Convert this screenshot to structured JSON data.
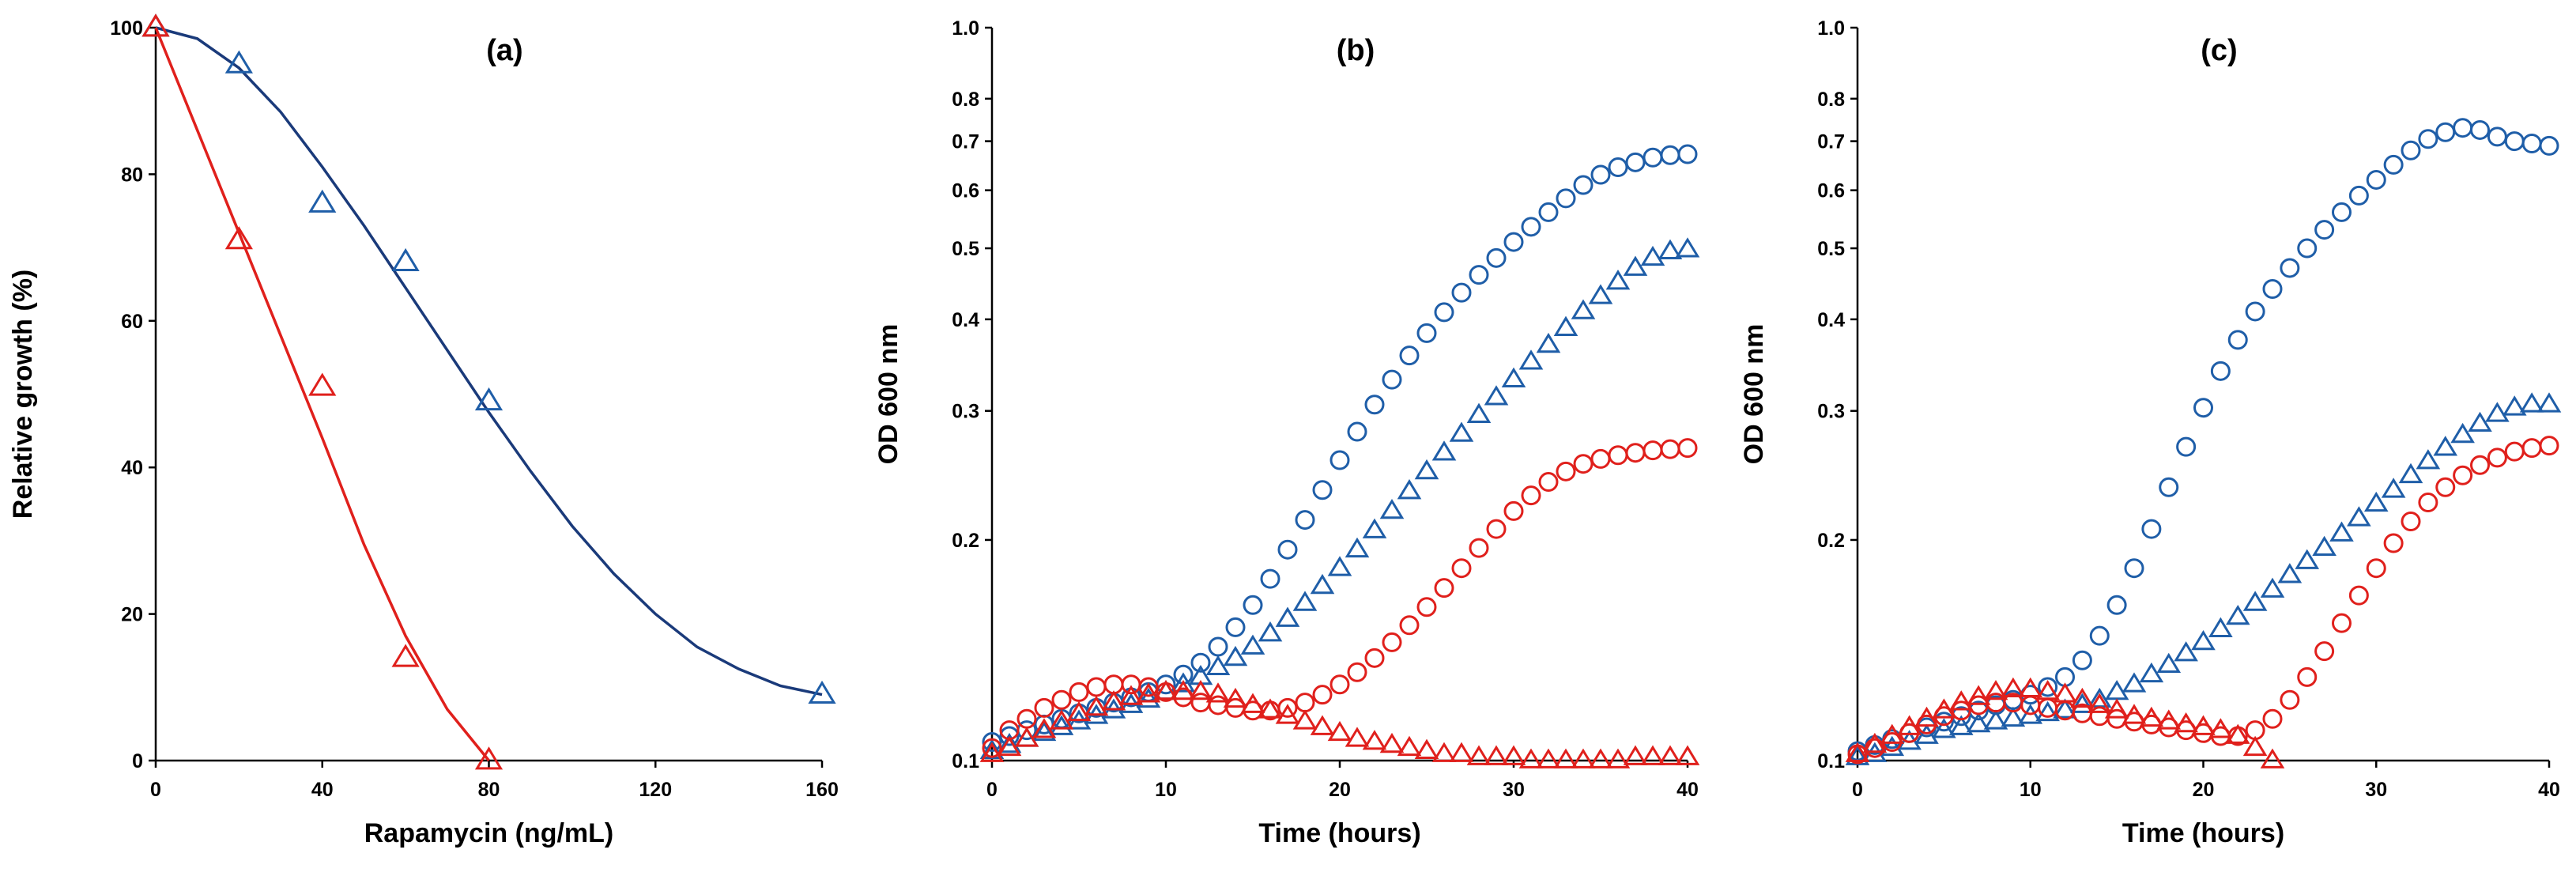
{
  "colors": {
    "blue": "#1f5ea8",
    "navy": "#1a3a7a",
    "red": "#e0201c",
    "axis": "#000000"
  },
  "chart_data": [
    {
      "type": "scatter",
      "title": "(a)",
      "xlabel": "Rapamycin (ng/mL)",
      "ylabel": "Relative growth (%)",
      "xlim": [
        0,
        160
      ],
      "ylim": [
        0,
        100
      ],
      "y_scale": "linear",
      "xticks": [
        "0",
        "40",
        "80",
        "120",
        "160"
      ],
      "yticks": [
        "0",
        "20",
        "40",
        "60",
        "80",
        "100"
      ],
      "legend": "none",
      "series": [
        {
          "marker": "triangle",
          "color": "blue",
          "x": [
            0,
            20,
            40,
            60,
            80,
            160
          ],
          "y": [
            100,
            95,
            76,
            68,
            49,
            9
          ],
          "fit_curve": {
            "x": [
              0,
              10,
              20,
              30,
              40,
              50,
              60,
              70,
              80,
              90,
              100,
              110,
              120,
              130,
              140,
              150,
              160
            ],
            "y": [
              100,
              98.5,
              94.5,
              88.5,
              81,
              73,
              64.5,
              56,
              47.5,
              39.5,
              32,
              25.5,
              20,
              15.5,
              12.5,
              10.2,
              9
            ]
          }
        },
        {
          "marker": "triangle",
          "color": "red",
          "x": [
            0,
            20,
            40,
            60,
            80
          ],
          "y": [
            100,
            71,
            51,
            14,
            0
          ],
          "fit_curve": {
            "x": [
              0,
              10,
              20,
              30,
              40,
              50,
              60,
              70,
              80
            ],
            "y": [
              100,
              86,
              72,
              58,
              44,
              29.5,
              17,
              7,
              0
            ]
          }
        }
      ]
    },
    {
      "type": "scatter",
      "title": "(b)",
      "xlabel": "Time (hours)",
      "ylabel": "OD 600 nm",
      "xlim": [
        0,
        40
      ],
      "ylim": [
        0.1,
        1.0
      ],
      "y_scale": "log",
      "xticks": [
        "0",
        "10",
        "20",
        "30",
        "40"
      ],
      "yticks": [
        "0.1",
        "0.2",
        "0.3",
        "0.4",
        "0.5",
        "0.6",
        "0.7",
        "0.8",
        "1.0"
      ],
      "legend": "none",
      "series": [
        {
          "marker": "circle",
          "color": "blue",
          "x": [
            0,
            1,
            2,
            3,
            4,
            5,
            6,
            7,
            8,
            9,
            10,
            11,
            12,
            13,
            14,
            15,
            16,
            17,
            18,
            19,
            20,
            21,
            22,
            23,
            24,
            25,
            26,
            27,
            28,
            29,
            30,
            31,
            32,
            33,
            34,
            35,
            36,
            37,
            38,
            39,
            40
          ],
          "y": [
            0.106,
            0.108,
            0.11,
            0.112,
            0.114,
            0.116,
            0.118,
            0.12,
            0.122,
            0.124,
            0.127,
            0.131,
            0.136,
            0.143,
            0.152,
            0.163,
            0.177,
            0.194,
            0.213,
            0.234,
            0.257,
            0.281,
            0.306,
            0.331,
            0.357,
            0.383,
            0.409,
            0.435,
            0.46,
            0.485,
            0.51,
            0.535,
            0.56,
            0.585,
            0.61,
            0.63,
            0.645,
            0.655,
            0.665,
            0.67,
            0.672
          ]
        },
        {
          "marker": "triangle",
          "color": "blue",
          "x": [
            0,
            1,
            2,
            3,
            4,
            5,
            6,
            7,
            8,
            9,
            10,
            11,
            12,
            13,
            14,
            15,
            16,
            17,
            18,
            19,
            20,
            21,
            22,
            23,
            24,
            25,
            26,
            27,
            28,
            29,
            30,
            31,
            32,
            33,
            34,
            35,
            36,
            37,
            38,
            39,
            40
          ],
          "y": [
            0.103,
            0.105,
            0.107,
            0.109,
            0.111,
            0.113,
            0.115,
            0.117,
            0.119,
            0.121,
            0.124,
            0.127,
            0.13,
            0.134,
            0.138,
            0.143,
            0.149,
            0.156,
            0.164,
            0.173,
            0.183,
            0.194,
            0.206,
            0.219,
            0.233,
            0.248,
            0.263,
            0.279,
            0.296,
            0.313,
            0.331,
            0.35,
            0.369,
            0.389,
            0.41,
            0.43,
            0.45,
            0.47,
            0.485,
            0.495,
            0.498
          ]
        },
        {
          "marker": "circle",
          "color": "red",
          "x": [
            0,
            1,
            2,
            3,
            4,
            5,
            6,
            7,
            8,
            9,
            10,
            11,
            12,
            13,
            14,
            15,
            16,
            17,
            18,
            19,
            20,
            21,
            22,
            23,
            24,
            25,
            26,
            27,
            28,
            29,
            30,
            31,
            32,
            33,
            34,
            35,
            36,
            37,
            38,
            39,
            40
          ],
          "y": [
            0.104,
            0.11,
            0.114,
            0.118,
            0.121,
            0.124,
            0.126,
            0.127,
            0.127,
            0.126,
            0.124,
            0.122,
            0.12,
            0.119,
            0.118,
            0.117,
            0.117,
            0.118,
            0.12,
            0.123,
            0.127,
            0.132,
            0.138,
            0.145,
            0.153,
            0.162,
            0.172,
            0.183,
            0.195,
            0.207,
            0.219,
            0.23,
            0.24,
            0.248,
            0.254,
            0.258,
            0.261,
            0.263,
            0.265,
            0.266,
            0.267
          ]
        },
        {
          "marker": "triangle",
          "color": "red",
          "x": [
            0,
            1,
            2,
            3,
            4,
            5,
            6,
            7,
            8,
            9,
            10,
            11,
            12,
            13,
            14,
            15,
            16,
            17,
            18,
            19,
            20,
            21,
            22,
            23,
            24,
            25,
            26,
            27,
            28,
            29,
            30,
            31,
            32,
            33,
            34,
            35,
            36,
            37,
            38,
            39,
            40
          ],
          "y": [
            0.102,
            0.104,
            0.107,
            0.11,
            0.113,
            0.116,
            0.118,
            0.12,
            0.122,
            0.123,
            0.124,
            0.124,
            0.124,
            0.123,
            0.121,
            0.119,
            0.117,
            0.115,
            0.113,
            0.111,
            0.109,
            0.107,
            0.106,
            0.105,
            0.104,
            0.103,
            0.102,
            0.102,
            0.101,
            0.101,
            0.101,
            0.1,
            0.1,
            0.1,
            0.1,
            0.1,
            0.1,
            0.101,
            0.101,
            0.101,
            0.101
          ]
        }
      ]
    },
    {
      "type": "scatter",
      "title": "(c)",
      "xlabel": "Time (hours)",
      "ylabel": "OD 600 nm",
      "xlim": [
        0,
        40
      ],
      "ylim": [
        0.1,
        1.0
      ],
      "y_scale": "log",
      "xticks": [
        "0",
        "10",
        "20",
        "30",
        "40"
      ],
      "yticks": [
        "0.1",
        "0.2",
        "0.3",
        "0.4",
        "0.5",
        "0.6",
        "0.7",
        "0.8",
        "1.0"
      ],
      "legend": "none",
      "series": [
        {
          "marker": "circle",
          "color": "blue",
          "x": [
            0,
            1,
            2,
            3,
            4,
            5,
            6,
            7,
            8,
            9,
            10,
            11,
            12,
            13,
            14,
            15,
            16,
            17,
            18,
            19,
            20,
            21,
            22,
            23,
            24,
            25,
            26,
            27,
            28,
            29,
            30,
            31,
            32,
            33,
            34,
            35,
            36,
            37,
            38,
            39,
            40
          ],
          "y": [
            0.103,
            0.105,
            0.107,
            0.109,
            0.111,
            0.113,
            0.115,
            0.117,
            0.119,
            0.121,
            0.123,
            0.126,
            0.13,
            0.137,
            0.148,
            0.163,
            0.183,
            0.207,
            0.236,
            0.268,
            0.303,
            0.34,
            0.375,
            0.41,
            0.44,
            0.47,
            0.5,
            0.53,
            0.56,
            0.59,
            0.62,
            0.65,
            0.68,
            0.705,
            0.72,
            0.73,
            0.725,
            0.71,
            0.7,
            0.695,
            0.69
          ]
        },
        {
          "marker": "triangle",
          "color": "blue",
          "x": [
            0,
            1,
            2,
            3,
            4,
            5,
            6,
            7,
            8,
            9,
            10,
            11,
            12,
            13,
            14,
            15,
            16,
            17,
            18,
            19,
            20,
            21,
            22,
            23,
            24,
            25,
            26,
            27,
            28,
            29,
            30,
            31,
            32,
            33,
            34,
            35,
            36,
            37,
            38,
            39,
            40
          ],
          "y": [
            0.101,
            0.102,
            0.104,
            0.106,
            0.108,
            0.11,
            0.111,
            0.112,
            0.113,
            0.114,
            0.115,
            0.116,
            0.117,
            0.119,
            0.121,
            0.124,
            0.127,
            0.131,
            0.135,
            0.14,
            0.145,
            0.151,
            0.157,
            0.164,
            0.171,
            0.179,
            0.187,
            0.195,
            0.204,
            0.214,
            0.224,
            0.234,
            0.245,
            0.256,
            0.267,
            0.278,
            0.288,
            0.297,
            0.303,
            0.306,
            0.306
          ]
        },
        {
          "marker": "circle",
          "color": "red",
          "x": [
            0,
            1,
            2,
            3,
            4,
            5,
            6,
            7,
            8,
            9,
            10,
            11,
            12,
            13,
            14,
            15,
            16,
            17,
            18,
            19,
            20,
            21,
            22,
            23,
            24,
            25,
            26,
            27,
            28,
            29,
            30,
            31,
            32,
            33,
            34,
            35,
            36,
            37,
            38,
            39,
            40
          ],
          "y": [
            0.102,
            0.104,
            0.106,
            0.109,
            0.112,
            0.115,
            0.117,
            0.119,
            0.12,
            0.12,
            0.119,
            0.118,
            0.117,
            0.116,
            0.115,
            0.114,
            0.113,
            0.112,
            0.111,
            0.11,
            0.109,
            0.108,
            0.108,
            0.11,
            0.114,
            0.121,
            0.13,
            0.141,
            0.154,
            0.168,
            0.183,
            0.198,
            0.212,
            0.225,
            0.236,
            0.245,
            0.253,
            0.259,
            0.264,
            0.267,
            0.269
          ]
        },
        {
          "marker": "triangle",
          "color": "red",
          "x": [
            0,
            1,
            2,
            3,
            4,
            5,
            6,
            7,
            8,
            9,
            10,
            11,
            12,
            13,
            14,
            15,
            16,
            17,
            18,
            19,
            20,
            21,
            22,
            23,
            24
          ],
          "y": [
            0.102,
            0.105,
            0.108,
            0.111,
            0.114,
            0.117,
            0.12,
            0.122,
            0.124,
            0.125,
            0.125,
            0.124,
            0.123,
            0.121,
            0.119,
            0.117,
            0.115,
            0.114,
            0.113,
            0.112,
            0.111,
            0.11,
            0.108,
            0.104,
            0.1
          ]
        }
      ]
    }
  ]
}
